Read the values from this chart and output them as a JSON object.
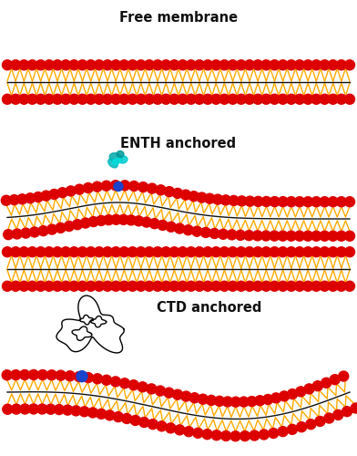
{
  "bg_color": "#ffffff",
  "head_color": "#dd0000",
  "tail_color": "#ffaa00",
  "line_color": "#111111",
  "anchor_color": "#1a44cc",
  "text_color": "#111111",
  "title1": "Free membrane",
  "title2": "ENTH anchored",
  "title3": "CTD anchored",
  "fontsize": 10.5,
  "figw": 3.92,
  "figh": 5.0,
  "dpi": 100
}
